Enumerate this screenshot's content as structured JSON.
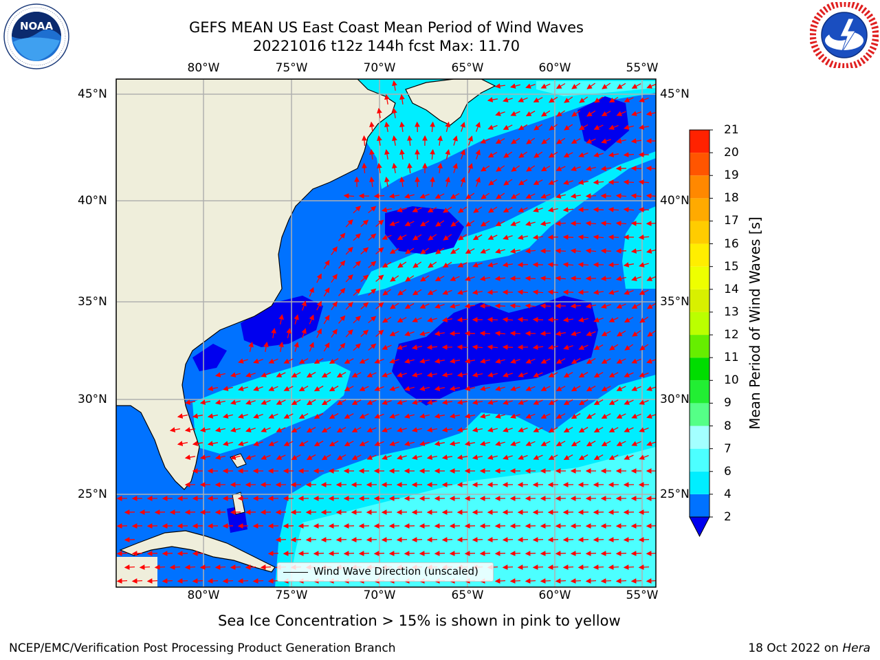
{
  "title": {
    "line1": "GEFS MEAN US East Coast Mean Period of Wind Waves",
    "line2": "20221016 t12z 144h fcst   Max: 11.70"
  },
  "logos": {
    "left_icon": "noaa-logo-icon",
    "left_text": "NOAA",
    "left_ring_text": "NATIONAL OCEANIC AND ATMOSPHERIC ADMINISTRATION · U.S. DEPARTMENT OF COMMERCE",
    "right_icon": "national-weather-service-logo-icon",
    "right_ring_text": "NATIONAL WEATHER SERVICE"
  },
  "map": {
    "lon_labels": [
      "80°W",
      "75°W",
      "70°W",
      "65°W",
      "60°W",
      "55°W"
    ],
    "lat_labels": [
      "45°N",
      "40°N",
      "35°N",
      "30°N",
      "25°N"
    ],
    "land_color": "#efeedb",
    "arrow_color": "#ff0000",
    "grid": true,
    "legend_label": "Wind Wave Direction (unscaled)"
  },
  "colorbar": {
    "label": "Mean Period of Wind Waves [s]",
    "ticks": [
      "2",
      "4",
      "6",
      "7",
      "8",
      "9",
      "10",
      "11",
      "12",
      "13",
      "14",
      "15",
      "16",
      "17",
      "18",
      "19",
      "20",
      "21"
    ],
    "colors": [
      "#0072ff",
      "#00eeff",
      "#4cffff",
      "#a3ffff",
      "#55ff87",
      "#22ee33",
      "#00dd00",
      "#66ee00",
      "#bbff00",
      "#d8f000",
      "#eeff00",
      "#ffee00",
      "#ffcc00",
      "#ffaa00",
      "#ff8800",
      "#ff5500",
      "#ff2200"
    ],
    "underflow_color": "#0000ee"
  },
  "footnote": "Sea Ice Concentration > 15% is shown in pink to yellow",
  "credits": {
    "left": "NCEP/EMC/Verification Post Processing Product Generation Branch",
    "right_prefix": "18 Oct 2022 on ",
    "right_host": "Hera"
  }
}
